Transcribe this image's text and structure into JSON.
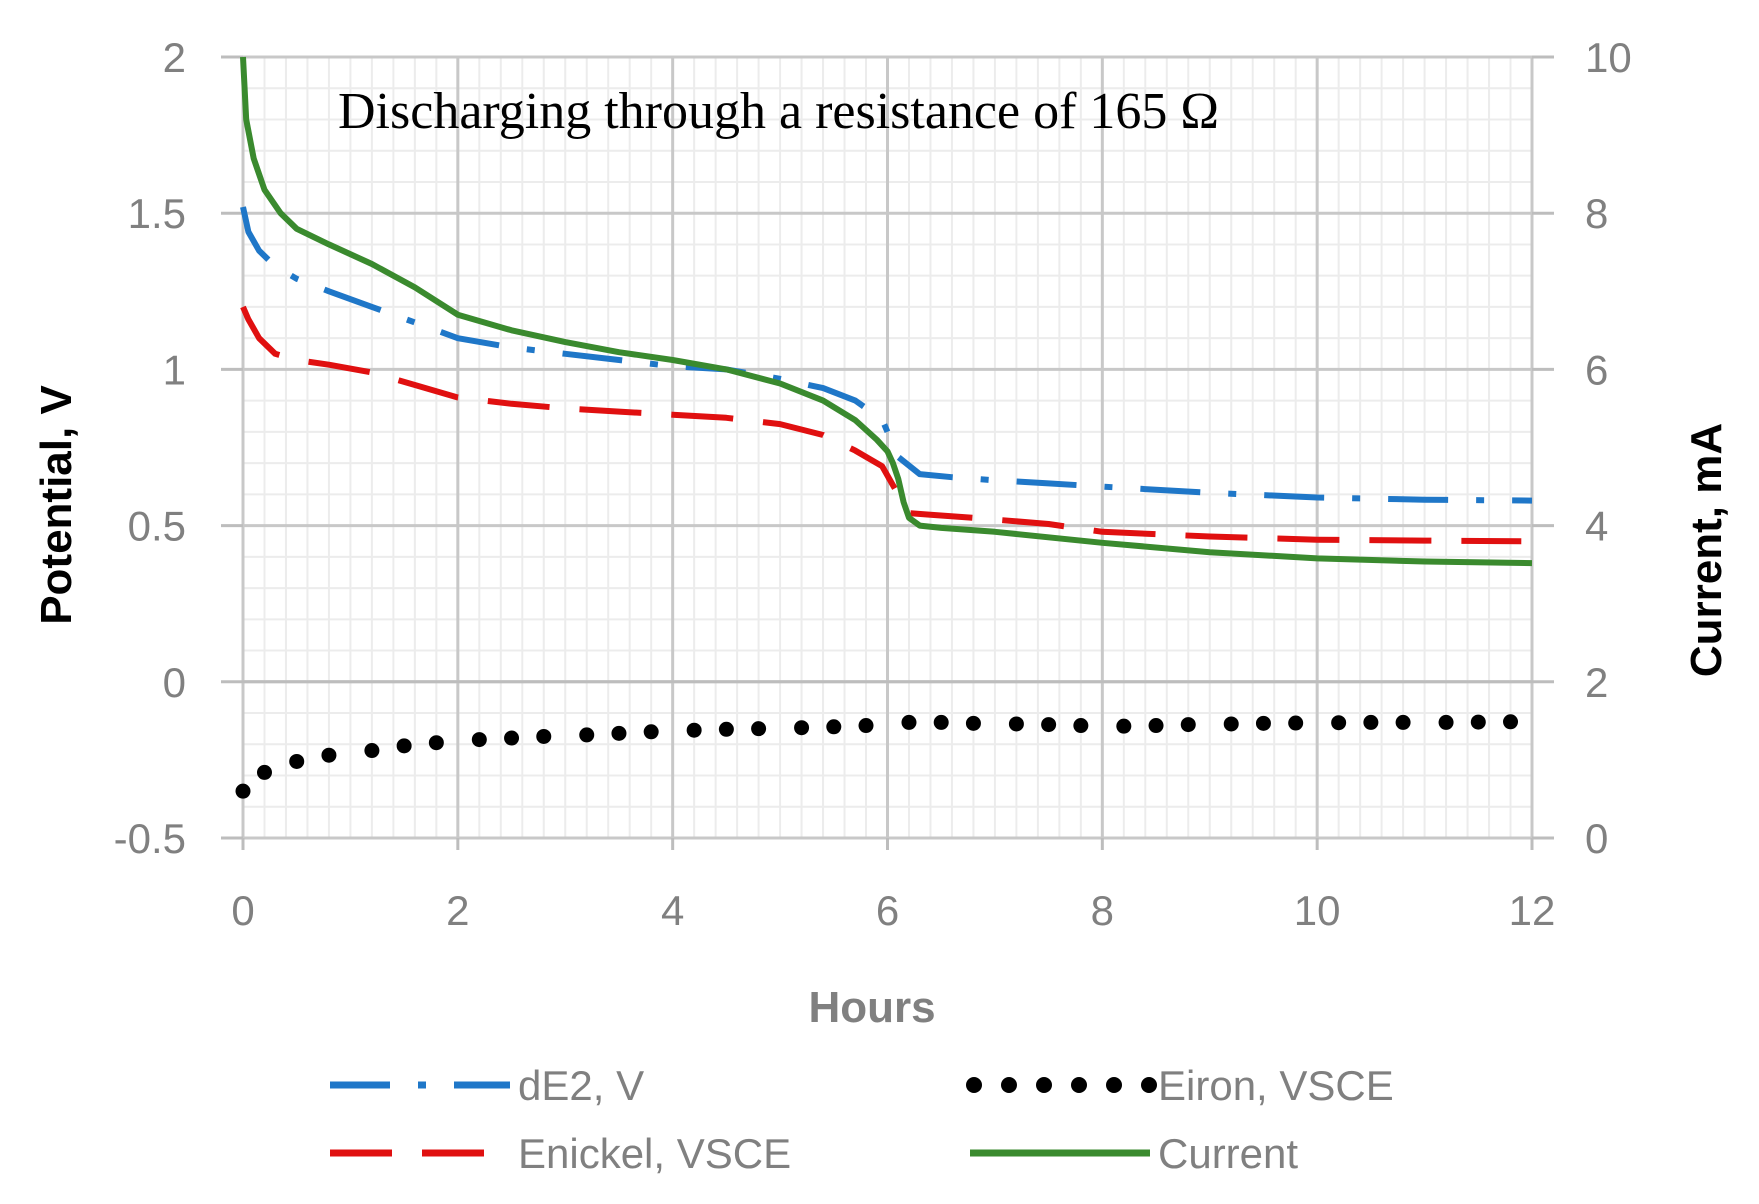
{
  "chart_data": {
    "type": "line",
    "annotation": "Discharging through a resistance of 165 Ω",
    "xlabel": "Hours",
    "ylabel": "Potential, V",
    "y2label": "Current, mA",
    "xlim": [
      0,
      12
    ],
    "ylim": [
      -0.5,
      2
    ],
    "y2lim": [
      0,
      10
    ],
    "xticks": [
      0,
      2,
      4,
      6,
      8,
      10,
      12
    ],
    "yticks": [
      -0.5,
      0,
      0.5,
      1,
      1.5,
      2
    ],
    "y2ticks": [
      0,
      2,
      4,
      6,
      8,
      10
    ],
    "xtick_labels": [
      "0",
      "2",
      "4",
      "6",
      "8",
      "10",
      "12"
    ],
    "ytick_labels": [
      "-0.5",
      "0",
      "0.5",
      "1",
      "1.5",
      "2"
    ],
    "y2tick_labels": [
      "0",
      "2",
      "4",
      "6",
      "8",
      "10"
    ],
    "grid": true,
    "legend_position": "bottom",
    "series": [
      {
        "name": "dE2, V",
        "axis": "left",
        "color": "#1f77c8",
        "style": "dash-dot",
        "x": [
          0,
          0.05,
          0.15,
          0.3,
          0.5,
          0.8,
          1.2,
          1.6,
          2.0,
          2.5,
          3.0,
          3.5,
          4.0,
          4.5,
          5.0,
          5.4,
          5.7,
          5.95,
          6.1,
          6.3,
          6.6,
          7.0,
          7.5,
          8.0,
          9.0,
          10.0,
          11.0,
          12.0
        ],
        "values": [
          1.52,
          1.44,
          1.38,
          1.33,
          1.29,
          1.25,
          1.2,
          1.15,
          1.1,
          1.07,
          1.05,
          1.03,
          1.01,
          1.0,
          0.97,
          0.94,
          0.9,
          0.84,
          0.72,
          0.665,
          0.655,
          0.645,
          0.635,
          0.625,
          0.605,
          0.59,
          0.583,
          0.58
        ]
      },
      {
        "name": "Eiron, VSCE",
        "axis": "left",
        "color": "#000000",
        "style": "dotted",
        "x": [
          0,
          0.2,
          0.5,
          0.8,
          1.2,
          1.5,
          1.8,
          2.2,
          2.5,
          2.8,
          3.2,
          3.5,
          3.8,
          4.2,
          4.5,
          4.8,
          5.2,
          5.5,
          5.8,
          6.2,
          6.5,
          6.8,
          7.2,
          7.5,
          7.8,
          8.2,
          8.5,
          8.8,
          9.2,
          9.5,
          9.8,
          10.2,
          10.5,
          10.8,
          11.2,
          11.5,
          11.8
        ],
        "values": [
          -0.35,
          -0.29,
          -0.255,
          -0.235,
          -0.22,
          -0.205,
          -0.195,
          -0.185,
          -0.18,
          -0.175,
          -0.17,
          -0.165,
          -0.16,
          -0.155,
          -0.152,
          -0.15,
          -0.147,
          -0.144,
          -0.14,
          -0.13,
          -0.13,
          -0.133,
          -0.135,
          -0.137,
          -0.14,
          -0.142,
          -0.14,
          -0.137,
          -0.135,
          -0.133,
          -0.132,
          -0.131,
          -0.13,
          -0.13,
          -0.13,
          -0.129,
          -0.128
        ]
      },
      {
        "name": "Enickel, VSCE",
        "axis": "left",
        "color": "#e01010",
        "style": "dashed",
        "x": [
          0,
          0.05,
          0.15,
          0.3,
          0.5,
          0.8,
          1.2,
          1.6,
          2.0,
          2.5,
          3.0,
          3.5,
          4.0,
          4.5,
          5.0,
          5.4,
          5.7,
          5.95,
          6.1,
          6.2,
          6.4,
          6.8,
          7.5,
          8.0,
          9.0,
          10.0,
          11.0,
          11.9
        ],
        "values": [
          1.2,
          1.16,
          1.1,
          1.05,
          1.03,
          1.015,
          0.99,
          0.95,
          0.91,
          0.89,
          0.875,
          0.865,
          0.855,
          0.845,
          0.825,
          0.79,
          0.74,
          0.69,
          0.6,
          0.54,
          0.535,
          0.525,
          0.505,
          0.48,
          0.465,
          0.455,
          0.452,
          0.45
        ]
      },
      {
        "name": "Current",
        "axis": "right",
        "color": "#3a8a2e",
        "style": "solid",
        "x": [
          0,
          0.03,
          0.1,
          0.2,
          0.35,
          0.5,
          0.8,
          1.2,
          1.6,
          2.0,
          2.5,
          3.0,
          3.5,
          4.0,
          4.5,
          5.0,
          5.4,
          5.7,
          5.9,
          6.0,
          6.05,
          6.1,
          6.15,
          6.2,
          6.3,
          6.5,
          7.0,
          8.0,
          9.0,
          10.0,
          11.0,
          12.0
        ],
        "values": [
          10.0,
          9.2,
          8.7,
          8.3,
          8.0,
          7.8,
          7.6,
          7.35,
          7.05,
          6.7,
          6.5,
          6.35,
          6.22,
          6.12,
          6.0,
          5.82,
          5.6,
          5.35,
          5.1,
          4.95,
          4.8,
          4.6,
          4.3,
          4.1,
          4.0,
          3.97,
          3.92,
          3.78,
          3.66,
          3.58,
          3.54,
          3.52
        ]
      }
    ]
  }
}
